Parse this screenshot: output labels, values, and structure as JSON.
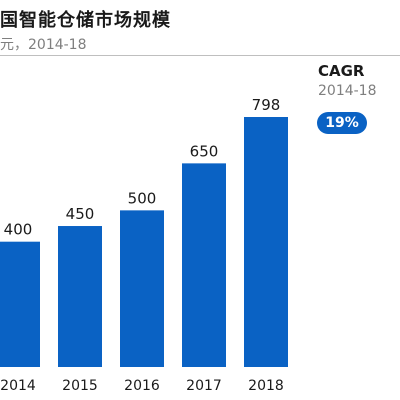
{
  "chart_data": {
    "type": "bar",
    "title": "国智能仓储市场规模",
    "subtitle": "元，2014-18",
    "categories": [
      "2014",
      "2015",
      "2016",
      "2017",
      "2018"
    ],
    "values": [
      400,
      450,
      500,
      650,
      798
    ],
    "data_labels": [
      "400",
      "450",
      "500",
      "650",
      "798"
    ],
    "ylim": [
      0,
      798
    ],
    "grid": false,
    "legend": "none",
    "bar_color": "#0a62c4",
    "callout": {
      "title": "CAGR",
      "period": "2014-18",
      "value": "19%",
      "badge_color": "#0a62c4"
    }
  }
}
